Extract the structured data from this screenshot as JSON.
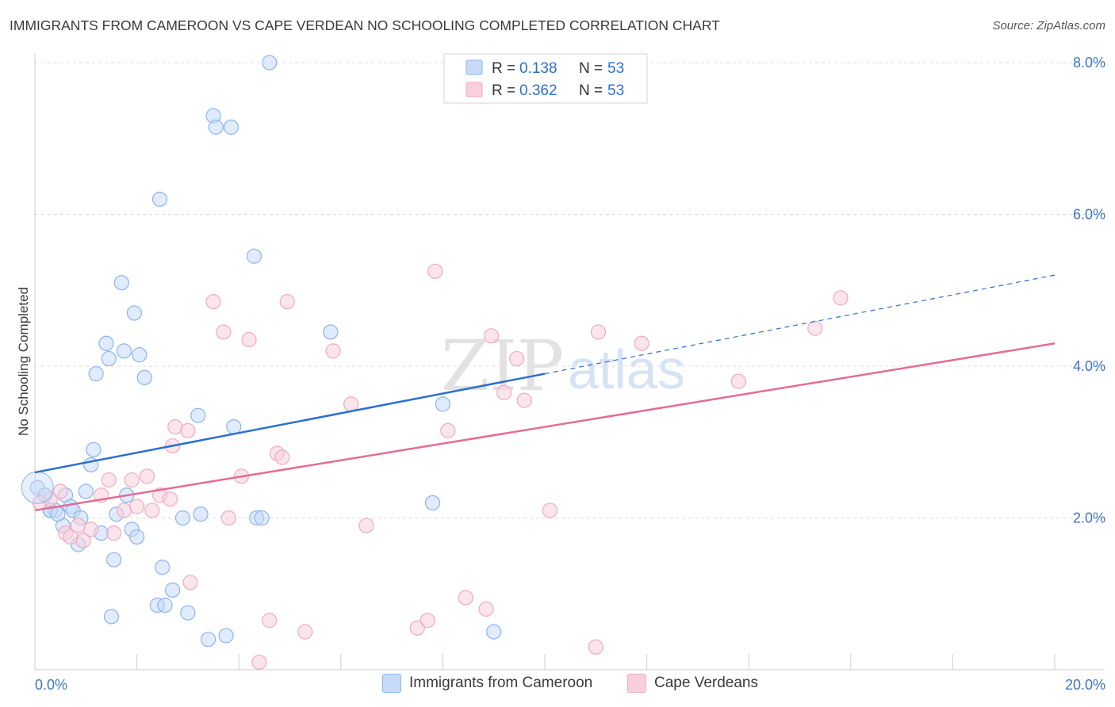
{
  "title": "IMMIGRANTS FROM CAMEROON VS CAPE VERDEAN NO SCHOOLING COMPLETED CORRELATION CHART",
  "source": "Source: ZipAtlas.com",
  "watermark": {
    "zip": "ZIP",
    "atlas": "atlas"
  },
  "legend_top": [
    {
      "r_label": "R =",
      "r_value": "0.138",
      "n_label": "N =",
      "n_value": "53"
    },
    {
      "r_label": "R =",
      "r_value": "0.362",
      "n_label": "N =",
      "n_value": "53"
    }
  ],
  "chart_data": {
    "type": "scatter",
    "title": "IMMIGRANTS FROM CAMEROON VS CAPE VERDEAN NO SCHOOLING COMPLETED CORRELATION CHART",
    "xlabel": "",
    "ylabel": "No Schooling Completed",
    "xlim": [
      0,
      20
    ],
    "ylim": [
      0,
      8
    ],
    "x_tick_labels": [
      "0.0%",
      "20.0%"
    ],
    "y_ticks": [
      2,
      4,
      6,
      8
    ],
    "y_tick_labels": [
      "2.0%",
      "4.0%",
      "6.0%",
      "8.0%"
    ],
    "grid": true,
    "legend_position": "bottom",
    "series": [
      {
        "name": "Immigrants from Cameroon",
        "color": "#8ab4f0",
        "fill": "#c7dbf7",
        "line_color": "#2a6fd0",
        "r": 0.138,
        "n": 53,
        "trend": {
          "x0": 0,
          "y0": 2.6,
          "x1": 10,
          "y1": 3.9,
          "dashed_to_x": 20,
          "dashed_to_y": 5.2
        },
        "points": [
          [
            0.05,
            2.4
          ],
          [
            0.2,
            2.3
          ],
          [
            0.3,
            2.1
          ],
          [
            0.4,
            2.1
          ],
          [
            0.55,
            1.9
          ],
          [
            0.6,
            2.3
          ],
          [
            0.7,
            2.15
          ],
          [
            0.75,
            2.1
          ],
          [
            0.85,
            1.65
          ],
          [
            0.9,
            2.0
          ],
          [
            1.0,
            2.35
          ],
          [
            1.1,
            2.7
          ],
          [
            1.15,
            2.9
          ],
          [
            1.2,
            3.9
          ],
          [
            1.3,
            1.8
          ],
          [
            1.4,
            4.3
          ],
          [
            1.45,
            4.1
          ],
          [
            1.5,
            0.7
          ],
          [
            1.55,
            1.45
          ],
          [
            1.6,
            2.05
          ],
          [
            1.7,
            5.1
          ],
          [
            1.75,
            4.2
          ],
          [
            1.8,
            2.3
          ],
          [
            1.9,
            1.85
          ],
          [
            1.95,
            4.7
          ],
          [
            2.0,
            1.75
          ],
          [
            2.05,
            4.15
          ],
          [
            2.15,
            3.85
          ],
          [
            2.4,
            0.85
          ],
          [
            2.45,
            6.2
          ],
          [
            2.5,
            1.35
          ],
          [
            2.55,
            0.85
          ],
          [
            2.7,
            1.05
          ],
          [
            2.9,
            2.0
          ],
          [
            3.0,
            0.75
          ],
          [
            3.2,
            3.35
          ],
          [
            3.25,
            2.05
          ],
          [
            3.4,
            0.4
          ],
          [
            3.5,
            7.3
          ],
          [
            3.55,
            7.15
          ],
          [
            3.75,
            0.45
          ],
          [
            3.85,
            7.15
          ],
          [
            3.9,
            3.2
          ],
          [
            4.3,
            5.45
          ],
          [
            4.35,
            2.0
          ],
          [
            4.45,
            2.0
          ],
          [
            4.6,
            8.0
          ],
          [
            5.8,
            4.45
          ],
          [
            7.8,
            2.2
          ],
          [
            8.0,
            3.5
          ],
          [
            9.0,
            0.5
          ],
          [
            0.3,
            2.1
          ],
          [
            0.45,
            2.05
          ]
        ]
      },
      {
        "name": "Cape Verdeans",
        "color": "#f2a9c0",
        "fill": "#f8cfdc",
        "line_color": "#e56b94",
        "r": 0.362,
        "n": 53,
        "trend": {
          "x0": 0,
          "y0": 2.1,
          "x1": 20,
          "y1": 4.3
        },
        "points": [
          [
            0.1,
            2.2
          ],
          [
            0.3,
            2.25
          ],
          [
            0.5,
            2.35
          ],
          [
            0.6,
            1.8
          ],
          [
            0.7,
            1.75
          ],
          [
            0.85,
            1.9
          ],
          [
            0.95,
            1.7
          ],
          [
            1.1,
            1.85
          ],
          [
            1.3,
            2.3
          ],
          [
            1.45,
            2.5
          ],
          [
            1.55,
            1.8
          ],
          [
            1.75,
            2.1
          ],
          [
            1.9,
            2.5
          ],
          [
            2.0,
            2.15
          ],
          [
            2.2,
            2.55
          ],
          [
            2.3,
            2.1
          ],
          [
            2.45,
            2.3
          ],
          [
            2.65,
            2.25
          ],
          [
            2.7,
            2.95
          ],
          [
            2.75,
            3.2
          ],
          [
            3.0,
            3.15
          ],
          [
            3.05,
            1.15
          ],
          [
            3.5,
            4.85
          ],
          [
            3.7,
            4.45
          ],
          [
            3.8,
            2.0
          ],
          [
            4.05,
            2.55
          ],
          [
            4.2,
            4.35
          ],
          [
            4.4,
            0.1
          ],
          [
            4.6,
            0.65
          ],
          [
            4.75,
            2.85
          ],
          [
            4.85,
            2.8
          ],
          [
            4.95,
            4.85
          ],
          [
            5.3,
            0.5
          ],
          [
            5.85,
            4.2
          ],
          [
            6.2,
            3.5
          ],
          [
            6.5,
            1.9
          ],
          [
            7.5,
            0.55
          ],
          [
            7.7,
            0.65
          ],
          [
            7.85,
            5.25
          ],
          [
            8.1,
            3.15
          ],
          [
            8.45,
            0.95
          ],
          [
            8.85,
            0.8
          ],
          [
            8.95,
            4.4
          ],
          [
            9.2,
            3.65
          ],
          [
            9.45,
            4.1
          ],
          [
            9.6,
            3.55
          ],
          [
            10.1,
            2.1
          ],
          [
            11.0,
            0.3
          ],
          [
            11.05,
            4.45
          ],
          [
            11.9,
            4.3
          ],
          [
            13.8,
            3.8
          ],
          [
            15.3,
            4.5
          ],
          [
            15.8,
            4.9
          ]
        ]
      }
    ]
  }
}
